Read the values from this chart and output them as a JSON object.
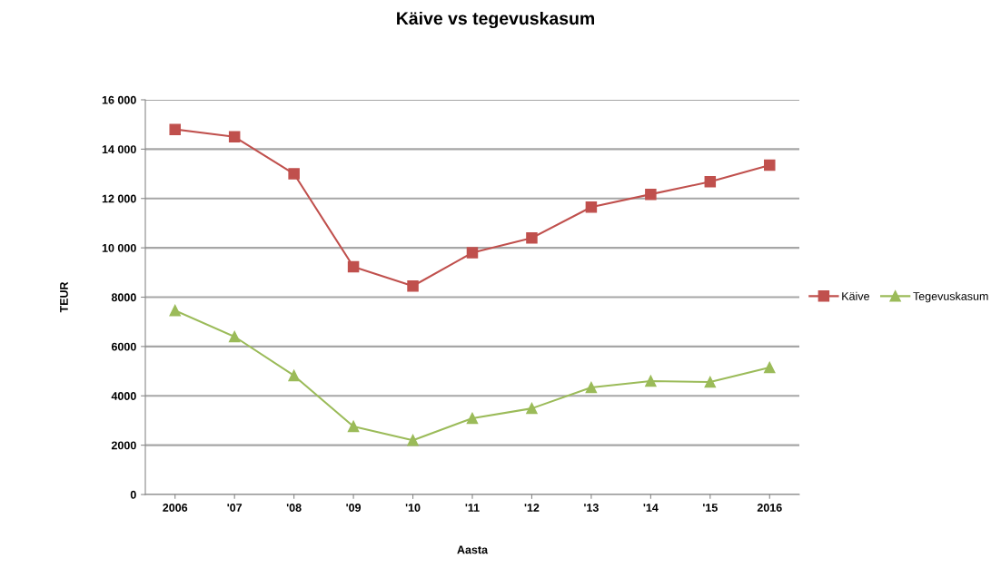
{
  "chart_data": {
    "type": "line",
    "title": "Käive vs tegevuskasum",
    "xlabel": "Aasta",
    "ylabel": "TEUR",
    "categories": [
      "2006",
      "'07",
      "'08",
      "'09",
      "'10",
      "'11",
      "'12",
      "'13",
      "'14",
      "'15",
      "2016"
    ],
    "series": [
      {
        "name": "Käive",
        "color": "#c0504d",
        "marker": "square",
        "values": [
          14800,
          14500,
          13000,
          9230,
          8450,
          9800,
          10400,
          11650,
          12170,
          12680,
          13350
        ]
      },
      {
        "name": "Tegevuskasum",
        "color": "#9bbb59",
        "marker": "triangle",
        "values": [
          7460,
          6400,
          4820,
          2760,
          2200,
          3090,
          3490,
          4340,
          4600,
          4560,
          5150
        ]
      }
    ],
    "ylim": [
      0,
      16000
    ],
    "yticks": [
      0,
      2000,
      4000,
      6000,
      8000,
      {
        "value": 10000,
        "label": "10 000"
      },
      {
        "value": 12000,
        "label": "12 000"
      },
      {
        "value": 14000,
        "label": "14 000"
      },
      {
        "value": 16000,
        "label": "16 000"
      }
    ],
    "grid": "y",
    "legend": "right",
    "line_style": "solid"
  }
}
